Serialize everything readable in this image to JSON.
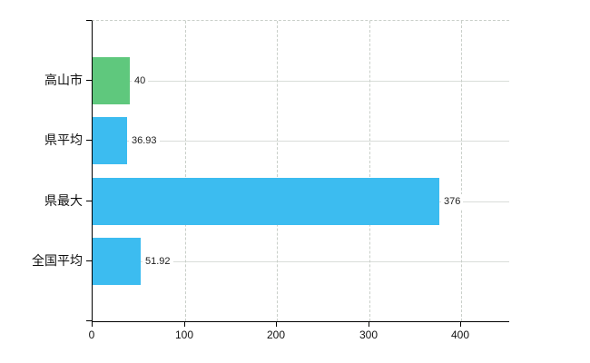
{
  "chart_data": {
    "type": "bar",
    "orientation": "horizontal",
    "title": "",
    "xlabel": "",
    "ylabel": "",
    "categories": [
      "高山市",
      "県平均",
      "県最大",
      "全国平均"
    ],
    "values": [
      40,
      36.93,
      376,
      51.92
    ],
    "value_labels": [
      "40",
      "36.93",
      "376",
      "51.92"
    ],
    "bar_colors": [
      "#5fc87d",
      "#3cbcf0",
      "#3cbcf0",
      "#3cbcf0"
    ],
    "x_tick_labels": [
      "0",
      "100",
      "200",
      "300",
      "400"
    ],
    "x_tick_values": [
      0,
      100,
      200,
      300,
      400
    ],
    "xlim": [
      0,
      452
    ],
    "grid": true,
    "legend": false,
    "background_color": "#ffffff",
    "axis_color": "#000000",
    "gridline_color": "#d9ddd9",
    "value_label_color": "#1c1c1c"
  }
}
